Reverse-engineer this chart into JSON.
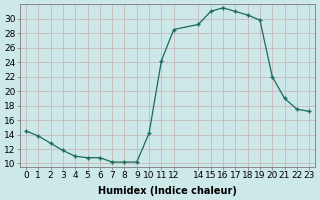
{
  "x": [
    0,
    1,
    2,
    3,
    4,
    5,
    6,
    7,
    8,
    9,
    10,
    11,
    12,
    14,
    15,
    16,
    17,
    18,
    19,
    20,
    21,
    22,
    23
  ],
  "y": [
    14.5,
    13.8,
    12.8,
    11.8,
    11.0,
    10.8,
    10.8,
    10.2,
    10.2,
    10.2,
    14.2,
    24.2,
    28.5,
    29.2,
    31.0,
    31.5,
    31.0,
    30.5,
    29.8,
    22.0,
    19.0,
    17.5,
    17.2
  ],
  "line_color": "#1a6b5a",
  "marker_color": "#1a6b5a",
  "bg_color": "#cde8e8",
  "grid_color": "#c8b8b8",
  "xlabel": "Humidex (Indice chaleur)",
  "xticks": [
    0,
    1,
    2,
    3,
    4,
    5,
    6,
    7,
    8,
    9,
    10,
    11,
    12,
    14,
    15,
    16,
    17,
    18,
    19,
    20,
    21,
    22,
    23
  ],
  "yticks": [
    10,
    12,
    14,
    16,
    18,
    20,
    22,
    24,
    26,
    28,
    30
  ],
  "ylim": [
    9.5,
    32
  ],
  "xlim": [
    -0.5,
    23.5
  ],
  "xlabel_fontsize": 7,
  "tick_fontsize": 6.5
}
